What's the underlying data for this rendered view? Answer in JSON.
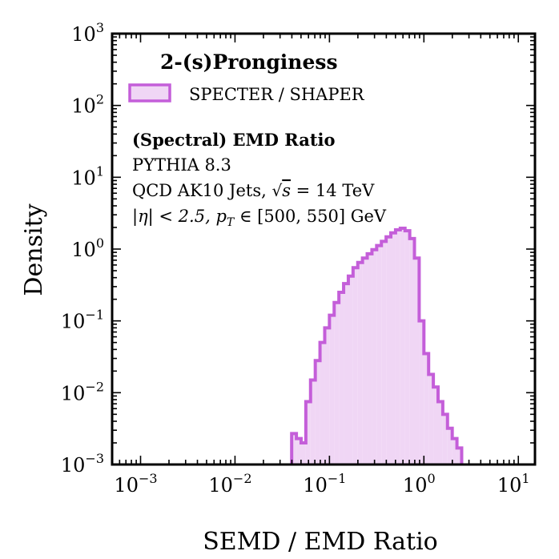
{
  "chart_data": {
    "type": "histogram",
    "title": "2-(s)Pronginess",
    "xlabel": "SEMD / EMD Ratio",
    "ylabel": "Density",
    "xscale": "log",
    "yscale": "log",
    "xlim": [
      0.0005,
      15
    ],
    "ylim": [
      0.001,
      1000
    ],
    "x_ticks": [
      {
        "value": 0.001,
        "base": "10",
        "exp": "−3"
      },
      {
        "value": 0.01,
        "base": "10",
        "exp": "−2"
      },
      {
        "value": 0.1,
        "base": "10",
        "exp": "−1"
      },
      {
        "value": 1,
        "base": "10",
        "exp": "0"
      },
      {
        "value": 10,
        "base": "10",
        "exp": "1"
      }
    ],
    "y_ticks": [
      {
        "value": 0.001,
        "base": "10",
        "exp": "−3"
      },
      {
        "value": 0.01,
        "base": "10",
        "exp": "−2"
      },
      {
        "value": 0.1,
        "base": "10",
        "exp": "−1"
      },
      {
        "value": 1,
        "base": "10",
        "exp": "0"
      },
      {
        "value": 10,
        "base": "10",
        "exp": "1"
      },
      {
        "value": 100,
        "base": "10",
        "exp": "2"
      },
      {
        "value": 1000,
        "base": "10",
        "exp": "3"
      }
    ],
    "legend": {
      "location": "top-left",
      "entries": [
        {
          "label": "SPECTER / SHAPER",
          "color": "#c45ed9",
          "fill": "#f0d6f5"
        }
      ]
    },
    "annotations": {
      "heading": "(Spectral) EMD Ratio",
      "line1": "PYTHIA 8.3",
      "line2_prefix": "QCD AK10 Jets, ",
      "line2_sqrt_s": "s",
      "line2_value": " = 14 TeV",
      "line3_eta": "|η| < 2.5, ",
      "line3_pt": "p",
      "line3_pt_sub": "T",
      "line3_range": " ∈ [500, 550] GeV"
    },
    "series": [
      {
        "name": "SPECTER / SHAPER",
        "color": "#c45ed9",
        "bin_edges_log10": [
          -1.4,
          -1.35,
          -1.3,
          -1.25,
          -1.2,
          -1.15,
          -1.1,
          -1.05,
          -1.0,
          -0.95,
          -0.9,
          -0.85,
          -0.8,
          -0.75,
          -0.7,
          -0.65,
          -0.6,
          -0.55,
          -0.5,
          -0.45,
          -0.4,
          -0.35,
          -0.3,
          -0.25,
          -0.2,
          -0.15,
          -0.1,
          -0.05,
          0.0,
          0.05,
          0.1,
          0.15,
          0.2,
          0.25,
          0.3,
          0.35,
          0.4
        ],
        "density": [
          0.0027,
          0.0023,
          0.002,
          0.0075,
          0.015,
          0.028,
          0.05,
          0.08,
          0.12,
          0.18,
          0.25,
          0.33,
          0.42,
          0.55,
          0.65,
          0.75,
          0.86,
          0.98,
          1.12,
          1.28,
          1.48,
          1.68,
          1.85,
          1.95,
          1.8,
          1.4,
          0.75,
          0.1,
          0.035,
          0.018,
          0.012,
          0.0075,
          0.005,
          0.0032,
          0.0023,
          0.0017
        ]
      }
    ]
  }
}
